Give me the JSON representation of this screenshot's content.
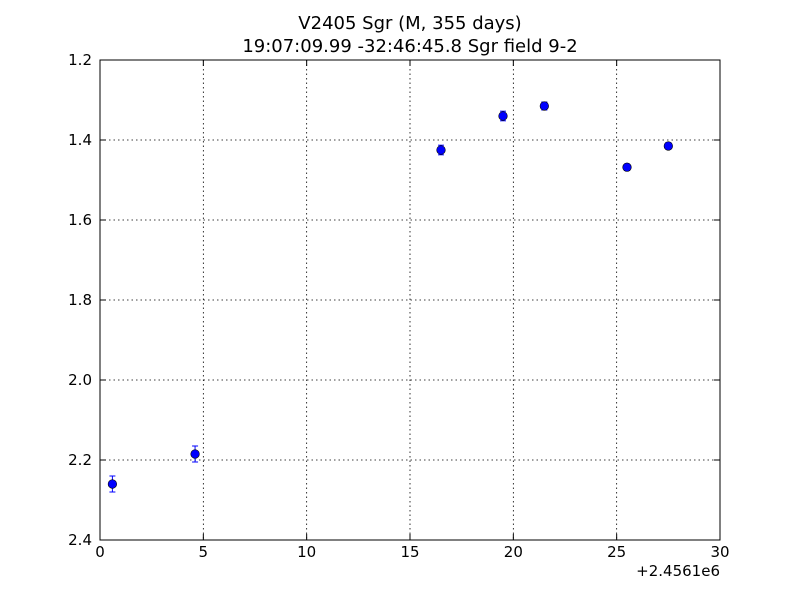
{
  "chart_data": {
    "type": "scatter",
    "title": "V2405 Sgr  (M, 355 days)",
    "subtitle": "19:07:09.99 -32:46:45.8 Sgr field 9-2",
    "xlabel": "",
    "ylabel": "",
    "x_offset_label": "+2.4561e6",
    "xlim": [
      0,
      30
    ],
    "ylim": [
      2.4,
      1.2
    ],
    "y_inverted": true,
    "grid": true,
    "x_ticks": [
      0,
      5,
      10,
      15,
      20,
      25,
      30
    ],
    "x_tick_labels": [
      "0",
      "5",
      "10",
      "15",
      "20",
      "25",
      "30"
    ],
    "y_ticks": [
      1.2,
      1.4,
      1.6,
      1.8,
      2.0,
      2.2,
      2.4
    ],
    "y_tick_labels": [
      "1.2",
      "1.4",
      "1.6",
      "1.8",
      "2.0",
      "2.2",
      "2.4"
    ],
    "marker_color": "#0000ff",
    "errorbar_color": "#0000ff",
    "series": [
      {
        "points": [
          {
            "x": 0.6,
            "y": 2.26,
            "err": 0.02
          },
          {
            "x": 4.6,
            "y": 2.185,
            "err": 0.02
          },
          {
            "x": 16.5,
            "y": 1.425,
            "err": 0.012
          },
          {
            "x": 19.5,
            "y": 1.34,
            "err": 0.012
          },
          {
            "x": 21.5,
            "y": 1.315,
            "err": 0.01
          },
          {
            "x": 25.5,
            "y": 1.468,
            "err": 0.008
          },
          {
            "x": 27.5,
            "y": 1.415,
            "err": 0.008
          }
        ]
      }
    ]
  }
}
